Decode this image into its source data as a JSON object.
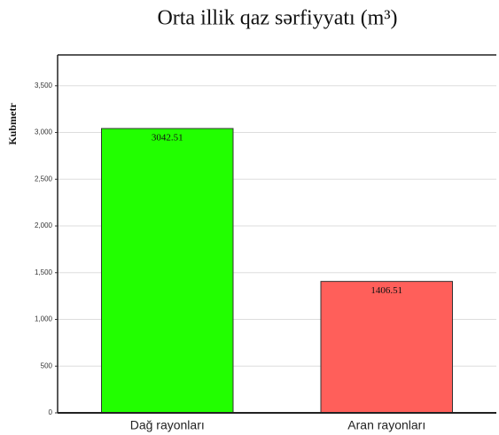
{
  "chart_data": {
    "type": "bar",
    "title": "Orta illik qaz sərfiyyatı (m³)",
    "y_label": "Kubmetr",
    "categories": [
      "Dağ rayonları",
      "Aran rayonları"
    ],
    "values": [
      3042.51,
      1406.51
    ],
    "colors": [
      "#22ff00",
      "#ff5f5a"
    ],
    "ylim": [
      0,
      3830
    ],
    "yticks": [
      0,
      500,
      {
        "value": 1000,
        "label": "1,000"
      },
      {
        "value": 1500,
        "label": "1,500"
      },
      {
        "value": 2000,
        "label": "2,000"
      },
      {
        "value": 2500,
        "label": "2,500"
      },
      {
        "value": 3000,
        "label": "3,000"
      },
      {
        "value": 3500,
        "label": "3,500"
      }
    ],
    "grid": true
  }
}
